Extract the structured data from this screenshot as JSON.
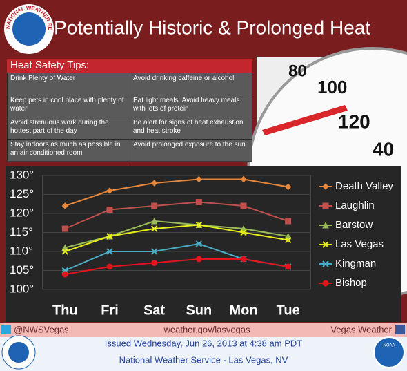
{
  "header": {
    "title": "Potentially Historic & Prolonged Heat",
    "logo_text": "NATIONAL WEATHER SERVICE"
  },
  "tips": {
    "title": "Heat Safety Tips:",
    "rows": [
      [
        "Drink Plenty of Water",
        "Avoid drinking caffeine or alcohol"
      ],
      [
        "Keep pets in cool place with plenty of water",
        "Eat light meals. Avoid heavy meals with lots of protein"
      ],
      [
        "Avoid strenuous work during the hottest part of the day",
        "Be alert for signs of heat exhaustion and heat stroke"
      ],
      [
        "Stay indoors as much as possible in an air conditioned room",
        "Avoid prolonged exposure to the sun"
      ]
    ]
  },
  "dial_labels": [
    "80",
    "100",
    "120",
    "40"
  ],
  "chart_data": {
    "type": "line",
    "categories": [
      "Thu",
      "Fri",
      "Sat",
      "Sun",
      "Mon",
      "Tue"
    ],
    "series": [
      {
        "name": "Death Valley",
        "color": "#e8873a",
        "values": [
          122,
          126,
          128,
          129,
          129,
          127
        ]
      },
      {
        "name": "Laughlin",
        "color": "#c0504d",
        "values": [
          116,
          121,
          122,
          123,
          122,
          118
        ]
      },
      {
        "name": "Barstow",
        "color": "#9bbb59",
        "values": [
          111,
          114,
          118,
          117,
          116,
          114
        ]
      },
      {
        "name": "Las Vegas",
        "color": "#e6ee1a",
        "values": [
          110,
          114,
          116,
          117,
          115,
          113
        ]
      },
      {
        "name": "Kingman",
        "color": "#4bacc6",
        "values": [
          105,
          110,
          110,
          112,
          108,
          106
        ]
      },
      {
        "name": "Bishop",
        "color": "#e3141b",
        "values": [
          104,
          106,
          107,
          108,
          108,
          106
        ]
      }
    ],
    "ylim": [
      100,
      130
    ],
    "yticks": [
      {
        "value": 100,
        "label": "100°"
      },
      {
        "value": 105,
        "label": "105°"
      },
      {
        "value": 110,
        "label": "110°"
      },
      {
        "value": 115,
        "label": "115°"
      },
      {
        "value": 120,
        "label": "120°"
      },
      {
        "value": 125,
        "label": "125°"
      },
      {
        "value": 130,
        "label": "130°"
      }
    ],
    "grid": true,
    "legend": "right"
  },
  "footer": {
    "twitter": "@NWSVegas",
    "website": "weather.gov/lasvegas",
    "facebook": "Vegas Weather",
    "issued": "Issued Wednesday, Jun 26, 2013 at 4:38 am PDT",
    "office": "National Weather Service - Las Vegas, NV",
    "noaa": "NOAA"
  }
}
